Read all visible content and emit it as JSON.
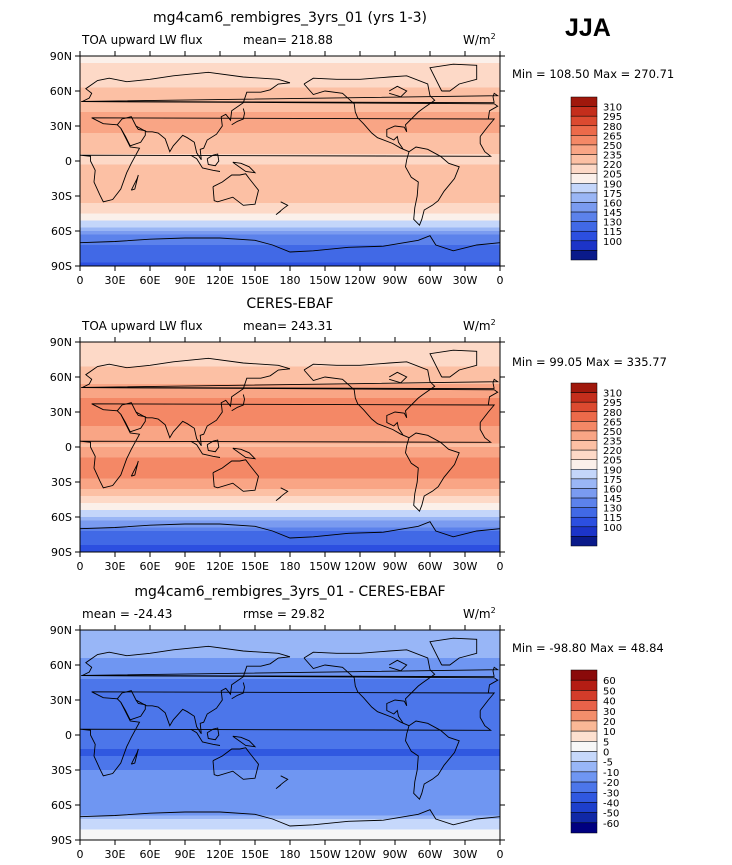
{
  "season": "JJA",
  "units_base": "W/m",
  "units_exp": "2",
  "lat_ticks": [
    "90N",
    "60N",
    "30N",
    "0",
    "30S",
    "60S",
    "90S"
  ],
  "lon_ticks": [
    "0",
    "30E",
    "60E",
    "90E",
    "120E",
    "150E",
    "180",
    "150W",
    "120W",
    "90W",
    "60W",
    "30W",
    "0"
  ],
  "colors": {
    "abs": [
      "#0a1a8a",
      "#1c34c8",
      "#2c4fe0",
      "#4169e6",
      "#5c82eb",
      "#7a9bf0",
      "#9ab6f5",
      "#c4d6fa",
      "#fbf0ea",
      "#fdd9c7",
      "#fcc0a4",
      "#f9a585",
      "#f48866",
      "#ec6a4a",
      "#dc4a30",
      "#c42e1c",
      "#a0180c"
    ],
    "diff": [
      "#000080",
      "#1028a6",
      "#1d3fcc",
      "#3058e0",
      "#4c76ea",
      "#6f96f2",
      "#98b6f7",
      "#c6d8fb",
      "#f7f7f7",
      "#fde0cf",
      "#f9b896",
      "#f38e6b",
      "#e8634a",
      "#d33c2a",
      "#b41d14",
      "#8a0a0a"
    ]
  },
  "chart_data": [
    {
      "type": "heatmap",
      "title": "mg4cam6_rembigres_3yrs_01 (yrs 1-3)",
      "left_label": "TOA upward LW flux",
      "stat_label": "mean=",
      "stat_value": "218.88",
      "min_label": "Min =",
      "min_value": "108.50",
      "max_label": "Max =",
      "max_value": "270.71",
      "levels": [
        "310",
        "295",
        "280",
        "265",
        "250",
        "235",
        "220",
        "205",
        "190",
        "175",
        "160",
        "145",
        "130",
        "115",
        "100"
      ],
      "zonal_profile": {
        "lat": [
          90,
          75,
          60,
          45,
          30,
          15,
          0,
          -15,
          -30,
          -45,
          -55,
          -65,
          -75,
          -90
        ],
        "value": [
          215,
          226,
          236,
          248,
          256,
          242,
          231,
          247,
          246,
          222,
          194,
          155,
          140,
          128
        ]
      }
    },
    {
      "type": "heatmap",
      "title": "CERES-EBAF",
      "left_label": "TOA upward LW flux",
      "stat_label": "mean=",
      "stat_value": "243.31",
      "min_label": "Min =",
      "min_value": "99.05",
      "max_label": "Max =",
      "max_value": "335.77",
      "levels": [
        "310",
        "295",
        "280",
        "265",
        "250",
        "235",
        "220",
        "205",
        "190",
        "175",
        "160",
        "145",
        "130",
        "115",
        "100"
      ],
      "zonal_profile": {
        "lat": [
          90,
          75,
          60,
          45,
          30,
          15,
          0,
          -15,
          -30,
          -45,
          -55,
          -65,
          -75,
          -90
        ],
        "value": [
          220,
          230,
          240,
          262,
          280,
          262,
          248,
          276,
          262,
          230,
          205,
          168,
          140,
          125
        ]
      }
    },
    {
      "type": "heatmap",
      "title": "mg4cam6_rembigres_3yrs_01 - CERES-EBAF",
      "left_label": "mean =",
      "left_value": "-24.43",
      "stat_label": "rmse =",
      "stat_value": "29.82",
      "min_label": "Min =",
      "min_value": "-98.80",
      "max_label": "Max =",
      "max_value": "48.84",
      "levels": [
        "60",
        "50",
        "40",
        "30",
        "20",
        "10",
        "5",
        "0",
        "-5",
        "-10",
        "-20",
        "-30",
        "-40",
        "-50",
        "-60"
      ],
      "zonal_profile": {
        "lat": [
          90,
          75,
          60,
          45,
          30,
          15,
          0,
          -15,
          -30,
          -45,
          -55,
          -65,
          -75,
          -90
        ],
        "value": [
          -6,
          -8,
          -12,
          -22,
          -30,
          -28,
          -20,
          -32,
          -20,
          -10,
          -12,
          -14,
          -2,
          3
        ]
      }
    }
  ]
}
